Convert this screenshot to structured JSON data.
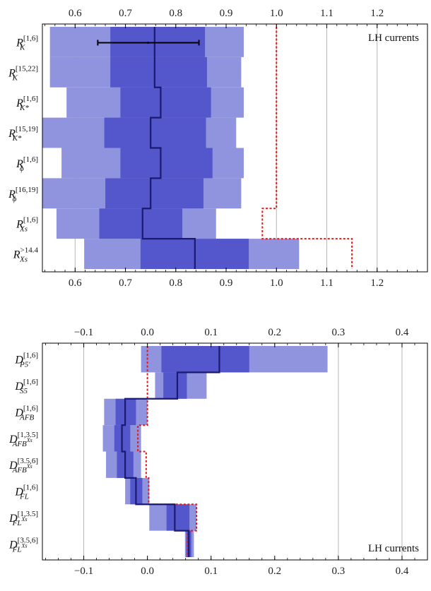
{
  "chart_data": [
    {
      "type": "bar",
      "note": "LH currents",
      "xlim": [
        0.535,
        1.3
      ],
      "ticks": [
        0.6,
        0.7,
        0.8,
        0.9,
        1.0,
        1.1,
        1.2
      ],
      "tick_labels": [
        "0.6",
        "0.7",
        "0.8",
        "0.9",
        "1.0",
        "1.1",
        "1.2"
      ],
      "grid_ticks": [
        0.6,
        1.0,
        1.1,
        1.2
      ],
      "categories": [
        {
          "base": "R",
          "sub": "K",
          "sup": "[1,6]"
        },
        {
          "base": "R",
          "sub": "K",
          "sup": "[15,22]"
        },
        {
          "base": "R",
          "sub": "K*",
          "sup": "[1,6]"
        },
        {
          "base": "R",
          "sub": "K*",
          "sup": "[15,19]"
        },
        {
          "base": "R",
          "sub": "ϕ",
          "sup": "[1,6]"
        },
        {
          "base": "R",
          "sub": "ϕ",
          "sup": "[16,19]"
        },
        {
          "base": "R",
          "sub": "Xs",
          "sup": "[1,6]"
        },
        {
          "base": "R",
          "sub": "Xs",
          "sup": ">14.4"
        }
      ],
      "outer_band": [
        [
          0.55,
          0.935
        ],
        [
          0.55,
          0.93
        ],
        [
          0.583,
          0.935
        ],
        [
          0.535,
          0.92
        ],
        [
          0.573,
          0.935
        ],
        [
          0.535,
          0.93
        ],
        [
          0.563,
          0.88
        ],
        [
          0.618,
          1.045
        ]
      ],
      "inner_band": [
        [
          0.67,
          0.858
        ],
        [
          0.67,
          0.862
        ],
        [
          0.69,
          0.87
        ],
        [
          0.658,
          0.86
        ],
        [
          0.69,
          0.873
        ],
        [
          0.66,
          0.855
        ],
        [
          0.648,
          0.813
        ],
        [
          0.73,
          0.945
        ]
      ],
      "central": [
        0.758,
        0.758,
        0.77,
        0.75,
        0.77,
        0.75,
        0.734,
        0.838
      ],
      "sm": [
        1.0,
        1.0,
        1.0,
        1.0,
        1.0,
        1.0,
        0.972,
        1.15
      ],
      "measurement": {
        "row": 0,
        "low": 0.645,
        "high": 0.846,
        "value": 0.745
      },
      "colors": {
        "outer": "#9094de",
        "inner": "#5457cc",
        "central": "#1b1a70",
        "sm": "#e21a1a",
        "grid": "#b5b5b5"
      }
    },
    {
      "type": "bar",
      "note": "LH currents",
      "xlim": [
        -0.165,
        0.44
      ],
      "ticks": [
        -0.1,
        0.0,
        0.1,
        0.2,
        0.3,
        0.4
      ],
      "tick_labels": [
        "−0.1",
        "0.0",
        "0.1",
        "0.2",
        "0.3",
        "0.4"
      ],
      "grid_ticks": [
        -0.1,
        0.3,
        0.4
      ],
      "categories": [
        {
          "base": "D",
          "sub": "P5′",
          "sup": "[1,6]"
        },
        {
          "base": "D",
          "sub": "S5",
          "sup": "[1,6]"
        },
        {
          "base": "D",
          "sub": "AFB",
          "sup": "[1,6]"
        },
        {
          "base": "D",
          "sub": "AFB",
          "sub_sup": "Xs",
          "sup": "[1,3.5]"
        },
        {
          "base": "D",
          "sub": "AFB",
          "sub_sup": "Xs",
          "sup": "[3.5,6]"
        },
        {
          "base": "D",
          "sub": "FL",
          "sup": "[1,6]"
        },
        {
          "base": "D",
          "sub": "FL",
          "sub_sup": "Xs",
          "sup": "[1,3.5]"
        },
        {
          "base": "D",
          "sub": "FL",
          "sub_sup": "Xs",
          "sup": "[3.5,6]"
        }
      ],
      "outer_band": [
        [
          -0.01,
          0.283
        ],
        [
          0.012,
          0.093
        ],
        [
          -0.068,
          0.0
        ],
        [
          -0.07,
          -0.01
        ],
        [
          -0.065,
          -0.01
        ],
        [
          -0.035,
          0.003
        ],
        [
          0.003,
          0.077
        ],
        [
          0.059,
          0.073
        ]
      ],
      "inner_band": [
        [
          0.022,
          0.16
        ],
        [
          0.025,
          0.062
        ],
        [
          -0.05,
          -0.018
        ],
        [
          -0.052,
          -0.027
        ],
        [
          -0.048,
          -0.022
        ],
        [
          -0.027,
          -0.008
        ],
        [
          0.03,
          0.066
        ],
        [
          0.061,
          0.069
        ]
      ],
      "central": [
        0.113,
        0.047,
        -0.035,
        -0.04,
        -0.035,
        -0.018,
        0.043,
        0.065
      ],
      "sm": [
        0.0,
        0.0,
        0.0,
        -0.015,
        -0.002,
        0.002,
        0.077,
        0.063
      ],
      "colors": {
        "outer": "#9094de",
        "inner": "#5457cc",
        "central": "#1b1a70",
        "sm": "#e21a1a",
        "grid": "#b5b5b5"
      }
    }
  ]
}
